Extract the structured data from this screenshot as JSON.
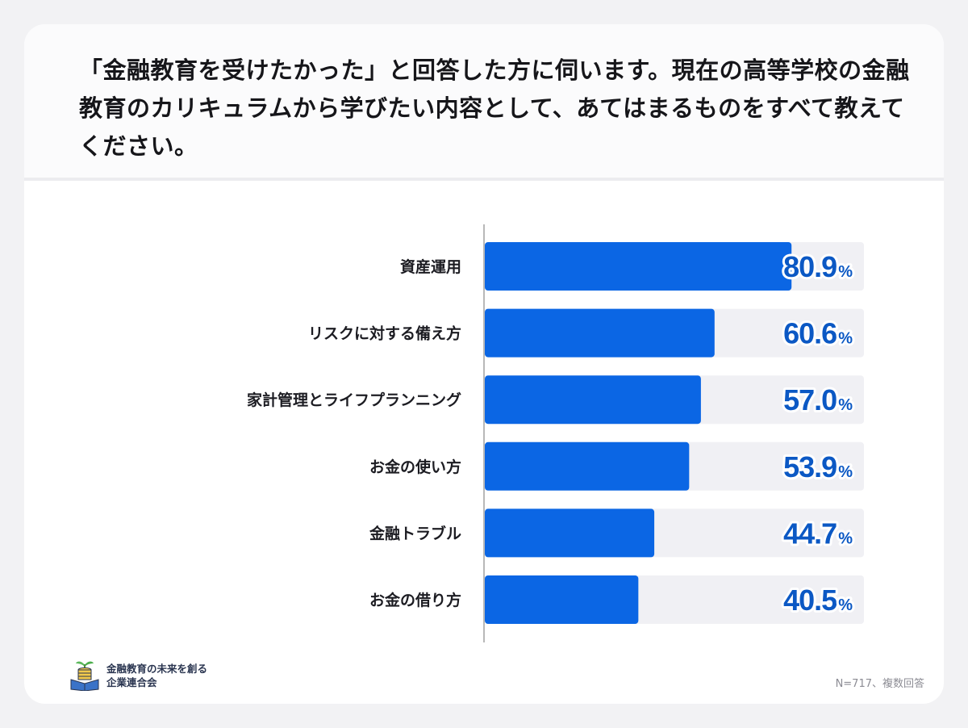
{
  "question": "「金融教育を受けたかった」と回答した方に伺います。現在の高等学校の金融教育のカリキュラムから学びたい内容として、あてはまるものをすべて教えてください。",
  "chart_data": {
    "type": "bar",
    "orientation": "horizontal",
    "categories": [
      "資産運用",
      "リスクに対する備え方",
      "家計管理とライフプランニング",
      "お金の使い方",
      "金融トラブル",
      "お金の借り方"
    ],
    "values": [
      80.9,
      60.6,
      57.0,
      53.9,
      44.7,
      40.5
    ],
    "value_labels": [
      "80.9",
      "60.6",
      "57.0",
      "53.9",
      "44.7",
      "40.5"
    ],
    "unit": "%",
    "xlim": [
      0,
      100
    ],
    "grid": false,
    "colors": {
      "bar": "#0b66e4",
      "track": "#f0f0f4",
      "label": "#0b58c4",
      "axis": "#b8b8b8"
    }
  },
  "footer": {
    "org_name_line1": "金融教育の未来を創る",
    "org_name_line2": "企業連合会",
    "logo_icon": "book-coins-sprout-icon",
    "note": "N=717、複数回答"
  }
}
